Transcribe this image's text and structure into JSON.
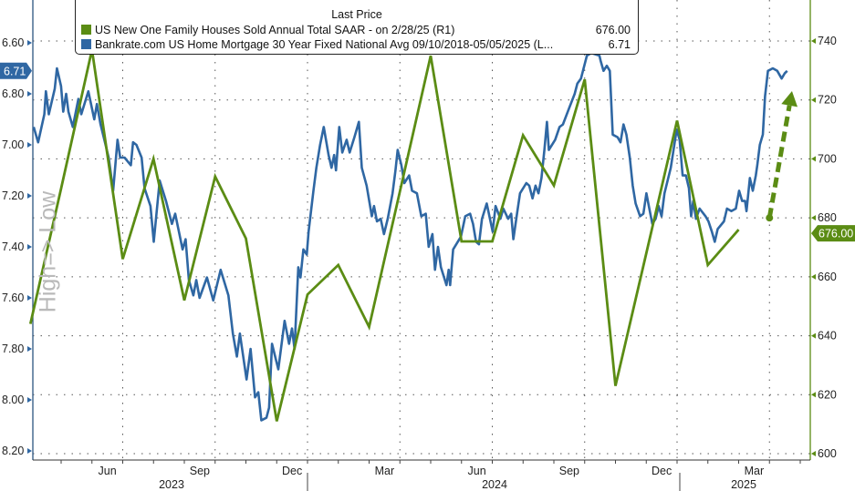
{
  "chart_data": {
    "type": "line",
    "legend_title": "Last Price",
    "watermark": "High=> Low",
    "colors": {
      "green": "#5b8c14",
      "blue": "#2f67a3"
    },
    "series": [
      {
        "name": "US New One Family Houses Sold Annual Total SAAR -  on 2/28/25  (R1)",
        "axis": "right",
        "last_value": "676.00",
        "color": "#5b8c14",
        "months": [
          "2023-03",
          "2023-04",
          "2023-05",
          "2023-06",
          "2023-07",
          "2023-08",
          "2023-09",
          "2023-10",
          "2023-11",
          "2023-12",
          "2024-01",
          "2024-02",
          "2024-03",
          "2024-04",
          "2024-05",
          "2024-06",
          "2024-07",
          "2024-08",
          "2024-09",
          "2024-10",
          "2024-11",
          "2024-12",
          "2025-01",
          "2025-02"
        ],
        "values": [
          644,
          690,
          737,
          666,
          700,
          652,
          694,
          673,
          611,
          654,
          664,
          643,
          689,
          735,
          672,
          672,
          708,
          691,
          727,
          623,
          668,
          713,
          664,
          676
        ]
      },
      {
        "name": "Bankrate.com US Home Mortgage 30 Year Fixed National Avg 09/10/2018-05/05/2025   (L...",
        "axis": "left",
        "last_value": "6.71",
        "color": "#2f67a3",
        "points": [
          [
            2023.259,
            6.93
          ],
          [
            2023.271,
            6.99
          ],
          [
            2023.288,
            6.88
          ],
          [
            2023.292,
            6.79
          ],
          [
            2023.3,
            6.88
          ],
          [
            2023.316,
            6.78
          ],
          [
            2023.322,
            6.7
          ],
          [
            2023.333,
            6.77
          ],
          [
            2023.339,
            6.87
          ],
          [
            2023.347,
            6.8
          ],
          [
            2023.353,
            6.87
          ],
          [
            2023.365,
            6.93
          ],
          [
            2023.38,
            6.82
          ],
          [
            2023.388,
            6.88
          ],
          [
            2023.407,
            6.79
          ],
          [
            2023.423,
            6.9
          ],
          [
            2023.43,
            6.84
          ],
          [
            2023.44,
            6.92
          ],
          [
            2023.462,
            7.05
          ],
          [
            2023.474,
            7.18
          ],
          [
            2023.486,
            6.98
          ],
          [
            2023.493,
            7.05
          ],
          [
            2023.505,
            7.05
          ],
          [
            2023.522,
            7.08
          ],
          [
            2023.528,
            6.99
          ],
          [
            2023.537,
            7.0
          ],
          [
            2023.551,
            7.05
          ],
          [
            2023.559,
            7.17
          ],
          [
            2023.575,
            7.24
          ],
          [
            2023.584,
            7.38
          ],
          [
            2023.6,
            7.14
          ],
          [
            2023.617,
            7.22
          ],
          [
            2023.633,
            7.31
          ],
          [
            2023.642,
            7.27
          ],
          [
            2023.662,
            7.41
          ],
          [
            2023.67,
            7.37
          ],
          [
            2023.679,
            7.53
          ],
          [
            2023.691,
            7.59
          ],
          [
            2023.699,
            7.53
          ],
          [
            2023.708,
            7.6
          ],
          [
            2023.728,
            7.52
          ],
          [
            2023.745,
            7.61
          ],
          [
            2023.765,
            7.49
          ],
          [
            2023.786,
            7.59
          ],
          [
            2023.798,
            7.74
          ],
          [
            2023.809,
            7.83
          ],
          [
            2023.817,
            7.74
          ],
          [
            2023.835,
            7.92
          ],
          [
            2023.846,
            7.8
          ],
          [
            2023.858,
            7.99
          ],
          [
            2023.867,
            7.97
          ],
          [
            2023.875,
            8.08
          ],
          [
            2023.889,
            8.07
          ],
          [
            2023.896,
            8.03
          ],
          [
            2023.904,
            7.78
          ],
          [
            2023.921,
            7.88
          ],
          [
            2023.938,
            7.69
          ],
          [
            2023.95,
            7.78
          ],
          [
            2023.958,
            7.72
          ],
          [
            2023.965,
            7.8
          ],
          [
            2023.975,
            7.48
          ],
          [
            2023.981,
            7.52
          ],
          [
            2023.989,
            7.41
          ],
          [
            2023.998,
            7.43
          ],
          [
            2024.003,
            7.34
          ],
          [
            2024.016,
            7.18
          ],
          [
            2024.024,
            7.09
          ],
          [
            2024.034,
            7.0
          ],
          [
            2024.044,
            6.93
          ],
          [
            2024.057,
            7.04
          ],
          [
            2024.065,
            7.09
          ],
          [
            2024.072,
            7.04
          ],
          [
            2024.077,
            7.1
          ],
          [
            2024.086,
            6.93
          ],
          [
            2024.094,
            7.03
          ],
          [
            2024.106,
            6.98
          ],
          [
            2024.114,
            7.03
          ],
          [
            2024.127,
            6.97
          ],
          [
            2024.139,
            6.91
          ],
          [
            2024.147,
            7.09
          ],
          [
            2024.16,
            7.16
          ],
          [
            2024.174,
            7.28
          ],
          [
            2024.18,
            7.24
          ],
          [
            2024.188,
            7.3
          ],
          [
            2024.198,
            7.29
          ],
          [
            2024.207,
            7.35
          ],
          [
            2024.217,
            7.29
          ],
          [
            2024.23,
            7.19
          ],
          [
            2024.238,
            7.1
          ],
          [
            2024.244,
            7.02
          ],
          [
            2024.254,
            7.08
          ],
          [
            2024.262,
            7.15
          ],
          [
            2024.275,
            7.12
          ],
          [
            2024.283,
            7.18
          ],
          [
            2024.296,
            7.19
          ],
          [
            2024.308,
            7.28
          ],
          [
            2024.32,
            7.27
          ],
          [
            2024.328,
            7.4
          ],
          [
            2024.338,
            7.35
          ],
          [
            2024.345,
            7.49
          ],
          [
            2024.353,
            7.4
          ],
          [
            2024.361,
            7.48
          ],
          [
            2024.376,
            7.55
          ],
          [
            2024.382,
            7.49
          ],
          [
            2024.386,
            7.55
          ],
          [
            2024.394,
            7.41
          ],
          [
            2024.415,
            7.36
          ],
          [
            2024.427,
            7.28
          ],
          [
            2024.44,
            7.27
          ],
          [
            2024.448,
            7.31
          ],
          [
            2024.456,
            7.38
          ],
          [
            2024.464,
            7.39
          ],
          [
            2024.472,
            7.29
          ],
          [
            2024.485,
            7.23
          ],
          [
            2024.501,
            7.34
          ],
          [
            2024.509,
            7.24
          ],
          [
            2024.522,
            7.29
          ],
          [
            2024.53,
            7.25
          ],
          [
            2024.543,
            7.29
          ],
          [
            2024.551,
            7.27
          ],
          [
            2024.557,
            7.37
          ],
          [
            2024.567,
            7.27
          ],
          [
            2024.575,
            7.19
          ],
          [
            2024.592,
            7.15
          ],
          [
            2024.6,
            7.16
          ],
          [
            2024.609,
            7.21
          ],
          [
            2024.617,
            7.16
          ],
          [
            2024.625,
            7.19
          ],
          [
            2024.633,
            7.13
          ],
          [
            2024.641,
            7.02
          ],
          [
            2024.648,
            6.91
          ],
          [
            2024.653,
            7.02
          ],
          [
            2024.67,
            6.98
          ],
          [
            2024.682,
            6.93
          ],
          [
            2024.691,
            6.92
          ],
          [
            2024.707,
            6.86
          ],
          [
            2024.723,
            6.8
          ],
          [
            2024.73,
            6.76
          ],
          [
            2024.74,
            6.74
          ],
          [
            2024.756,
            6.65
          ],
          [
            2024.768,
            6.64
          ],
          [
            2024.79,
            6.65
          ],
          [
            2024.793,
            6.67
          ],
          [
            2024.801,
            6.71
          ],
          [
            2024.81,
            6.69
          ],
          [
            2024.818,
            6.71
          ],
          [
            2024.826,
            6.96
          ],
          [
            2024.839,
            6.97
          ],
          [
            2024.847,
            6.99
          ],
          [
            2024.855,
            6.92
          ],
          [
            2024.863,
            6.96
          ],
          [
            2024.872,
            7.05
          ],
          [
            2024.88,
            7.16
          ],
          [
            2024.888,
            7.23
          ],
          [
            2024.9,
            7.28
          ],
          [
            2024.909,
            7.27
          ],
          [
            2024.917,
            7.19
          ],
          [
            2024.925,
            7.25
          ],
          [
            2024.933,
            7.31
          ],
          [
            2024.942,
            7.29
          ],
          [
            2024.95,
            7.24
          ],
          [
            2024.958,
            7.28
          ],
          [
            2024.966,
            7.19
          ],
          [
            2024.983,
            7.09
          ],
          [
            2024.999,
            6.94
          ],
          [
            2025.007,
            6.98
          ],
          [
            2025.015,
            7.12
          ],
          [
            2025.024,
            7.12
          ],
          [
            2025.032,
            7.17
          ],
          [
            2025.038,
            7.28
          ],
          [
            2025.044,
            7.22
          ],
          [
            2025.051,
            7.29
          ],
          [
            2025.061,
            7.25
          ],
          [
            2025.077,
            7.28
          ],
          [
            2025.085,
            7.3
          ],
          [
            2025.094,
            7.34
          ],
          [
            2025.102,
            7.38
          ],
          [
            2025.11,
            7.33
          ],
          [
            2025.127,
            7.3
          ],
          [
            2025.135,
            7.25
          ],
          [
            2025.147,
            7.26
          ],
          [
            2025.159,
            7.25
          ],
          [
            2025.168,
            7.18
          ],
          [
            2025.176,
            7.22
          ],
          [
            2025.184,
            7.22
          ],
          [
            2025.188,
            7.26
          ],
          [
            2025.197,
            7.13
          ],
          [
            2025.205,
            7.18
          ],
          [
            2025.213,
            7.12
          ],
          [
            2025.217,
            7.08
          ],
          [
            2025.224,
            7.0
          ],
          [
            2025.232,
            6.96
          ],
          [
            2025.238,
            6.81
          ],
          [
            2025.246,
            6.71
          ],
          [
            2025.259,
            6.7
          ],
          [
            2025.271,
            6.71
          ],
          [
            2025.283,
            6.74
          ],
          [
            2025.291,
            6.72
          ],
          [
            2025.298,
            6.71
          ]
        ]
      }
    ],
    "annotation_arrow": {
      "from": [
        2025.25,
        680
      ],
      "to": [
        2025.311,
        723
      ],
      "style": "dashed",
      "axis": "right"
    },
    "left_axis": {
      "ylim": [
        6.6,
        8.2
      ],
      "inverted": true,
      "ticks": [
        "6.60",
        "6.80",
        "7.00",
        "7.20",
        "7.40",
        "7.60",
        "7.80",
        "8.00",
        "8.20"
      ]
    },
    "right_axis": {
      "ylim": [
        600,
        740
      ],
      "ticks": [
        "740",
        "720",
        "700",
        "680",
        "660",
        "640",
        "620",
        "600"
      ]
    },
    "x_axis": {
      "xlim": [
        2023.25,
        2025.37
      ],
      "month_labels": [
        {
          "label": "Jun",
          "year": 2023,
          "month": 6
        },
        {
          "label": "Sep",
          "year": 2023,
          "month": 9
        },
        {
          "label": "Dec",
          "year": 2023,
          "month": 12
        },
        {
          "label": "Mar",
          "year": 2024,
          "month": 3
        },
        {
          "label": "Jun",
          "year": 2024,
          "month": 6
        },
        {
          "label": "Sep",
          "year": 2024,
          "month": 9
        },
        {
          "label": "Dec",
          "year": 2024,
          "month": 12
        },
        {
          "label": "Mar",
          "year": 2025,
          "month": 3
        }
      ],
      "year_labels": [
        "2023",
        "2024",
        "2025"
      ]
    },
    "grid": true
  }
}
